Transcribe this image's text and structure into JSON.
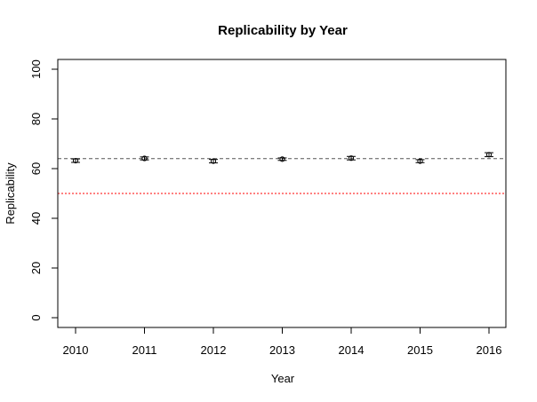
{
  "chart_data": {
    "type": "scatter",
    "title": "Replicability by Year",
    "xlabel": "Year",
    "ylabel": "Replicability",
    "categories": [
      "2010",
      "2011",
      "2012",
      "2013",
      "2014",
      "2015",
      "2016"
    ],
    "ylim": [
      0,
      100
    ],
    "yticks": [
      0,
      20,
      40,
      60,
      80,
      100
    ],
    "series": [
      {
        "values": [
          63.2,
          64.1,
          63.0,
          63.8,
          64.2,
          63.0,
          65.6
        ],
        "lower": [
          62.5,
          63.5,
          62.3,
          63.3,
          63.5,
          62.4,
          64.8
        ],
        "upper": [
          63.9,
          64.7,
          63.7,
          64.3,
          64.9,
          63.6,
          66.4
        ]
      }
    ],
    "reference_lines": [
      {
        "value": 64.0,
        "color": "#555555",
        "style": "dashed"
      },
      {
        "value": 50.0,
        "color": "#ff0000",
        "style": "dotted"
      }
    ],
    "grid": false,
    "legend": "none"
  }
}
